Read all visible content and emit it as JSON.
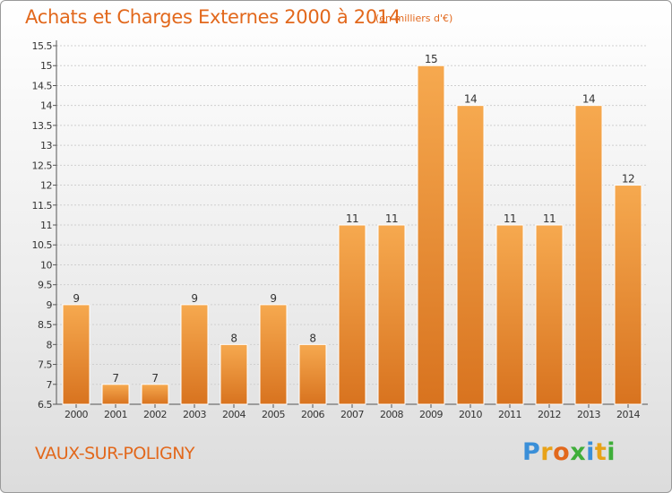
{
  "header": {
    "title": "Achats et Charges Externes 2000 à 2014",
    "subtitle": "(en milliers d'€)"
  },
  "footer": {
    "place": "VAUX-SUR-POLIGNY",
    "logo_text": "Proxiti",
    "logo_colors": [
      "#3a8fd8",
      "#e8a218",
      "#e2681c",
      "#3fae3a",
      "#3a8fd8",
      "#e8a218",
      "#3fae3a"
    ]
  },
  "chart_data": {
    "type": "bar",
    "title": "Achats et Charges Externes 2000 à 2014",
    "subtitle": "(en milliers d'€)",
    "xlabel": "",
    "ylabel": "",
    "categories": [
      "2000",
      "2001",
      "2002",
      "2003",
      "2004",
      "2005",
      "2006",
      "2007",
      "2008",
      "2009",
      "2010",
      "2011",
      "2012",
      "2013",
      "2014"
    ],
    "values": [
      9,
      7,
      7,
      9,
      8,
      9,
      8,
      11,
      11,
      15,
      14,
      11,
      11,
      14,
      12
    ],
    "data_labels": [
      "9",
      "7",
      "7",
      "9",
      "8",
      "9",
      "8",
      "11",
      "11",
      "15",
      "14",
      "11",
      "11",
      "14",
      "12"
    ],
    "ylim": [
      6.5,
      15.5
    ],
    "yticks": [
      6.5,
      7,
      7.5,
      8,
      8.5,
      9,
      9.5,
      10,
      10.5,
      11,
      11.5,
      12,
      12.5,
      13,
      13.5,
      14,
      14.5,
      15,
      15.5
    ],
    "ytick_labels": [
      "6.5",
      "7",
      "7.5",
      "8",
      "8.5",
      "9",
      "9.5",
      "10",
      "10.5",
      "11",
      "11.5",
      "12",
      "12.5",
      "13",
      "13.5",
      "14",
      "14.5",
      "15",
      "15.5"
    ],
    "grid": true,
    "colors": {
      "bar_light": "#f6a94f",
      "bar_dark": "#d8731f",
      "accent": "#e2681c"
    }
  }
}
